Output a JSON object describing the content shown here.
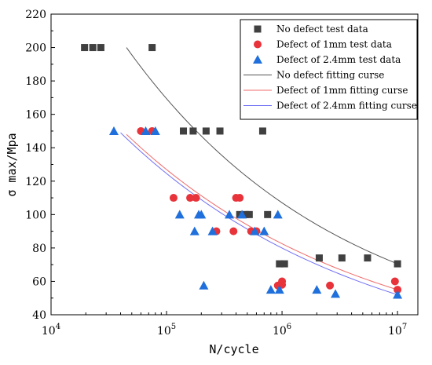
{
  "chart_data": {
    "type": "scatter",
    "xlabel": "N/cycle",
    "ylabel": "σ max/Mpa",
    "x_scale": "log",
    "xlim": [
      10000,
      15000000
    ],
    "ylim": [
      40,
      220
    ],
    "x_ticks": [
      10000,
      100000,
      1000000,
      10000000
    ],
    "x_tick_labels": [
      {
        "base": "10",
        "exp": "4"
      },
      {
        "base": "10",
        "exp": "5"
      },
      {
        "base": "10",
        "exp": "6"
      },
      {
        "base": "10",
        "exp": "7"
      }
    ],
    "y_ticks": [
      40,
      60,
      80,
      100,
      120,
      140,
      160,
      180,
      200,
      220
    ],
    "grid": false,
    "legend_position": "top-right",
    "series": [
      {
        "name": "No defect test data",
        "marker": "square",
        "color": "#404040",
        "points": [
          [
            19500,
            200
          ],
          [
            23000,
            200
          ],
          [
            27000,
            200
          ],
          [
            75000,
            200
          ],
          [
            140000,
            150
          ],
          [
            170000,
            150
          ],
          [
            220000,
            150
          ],
          [
            290000,
            150
          ],
          [
            680000,
            150
          ],
          [
            430000,
            100
          ],
          [
            480000,
            100
          ],
          [
            520000,
            100
          ],
          [
            750000,
            100
          ],
          [
            950000,
            70.5
          ],
          [
            1050000,
            70.5
          ],
          [
            2100000,
            74
          ],
          [
            3300000,
            74
          ],
          [
            5500000,
            74
          ],
          [
            10000000,
            70.5
          ]
        ]
      },
      {
        "name": "Defect of 1mm  test data",
        "marker": "circle",
        "color": "#e8333a",
        "points": [
          [
            60000,
            150
          ],
          [
            75000,
            150
          ],
          [
            115000,
            110
          ],
          [
            160000,
            110
          ],
          [
            180000,
            110
          ],
          [
            400000,
            110
          ],
          [
            430000,
            110
          ],
          [
            270000,
            90
          ],
          [
            380000,
            90
          ],
          [
            540000,
            90
          ],
          [
            600000,
            90
          ],
          [
            920000,
            57.5
          ],
          [
            1000000,
            58
          ],
          [
            1000000,
            60
          ],
          [
            2600000,
            57.5
          ],
          [
            9500000,
            60
          ],
          [
            10000000,
            55
          ]
        ]
      },
      {
        "name": "Defect of 2.4mm  test data",
        "marker": "triangle",
        "color": "#1f6fdc",
        "points": [
          [
            35000,
            150
          ],
          [
            66000,
            150
          ],
          [
            80000,
            150
          ],
          [
            130000,
            100
          ],
          [
            190000,
            100
          ],
          [
            200000,
            100
          ],
          [
            350000,
            100
          ],
          [
            450000,
            100
          ],
          [
            920000,
            100
          ],
          [
            175000,
            90
          ],
          [
            250000,
            90
          ],
          [
            580000,
            90
          ],
          [
            700000,
            90
          ],
          [
            210000,
            57.5
          ],
          [
            800000,
            55
          ],
          [
            950000,
            55
          ],
          [
            2000000,
            55
          ],
          [
            2900000,
            52.5
          ],
          [
            10000000,
            52
          ]
        ]
      }
    ],
    "fit_lines": [
      {
        "name": "No defect fitting curse",
        "color": "#555555",
        "x_range": [
          45000,
          10000000
        ],
        "y_at_start": 200,
        "y_at_end": 70.5,
        "shape": 1.25
      },
      {
        "name": "Defect of 1mm  fitting curse",
        "color": "#f06a6a",
        "x_range": [
          45000,
          10000000
        ],
        "y_at_start": 148,
        "y_at_end": 55,
        "shape": 1.12
      },
      {
        "name": "Defect of 2.4mm  fitting curse",
        "color": "#6f6ff5",
        "x_range": [
          40000,
          10000000
        ],
        "y_at_start": 149,
        "y_at_end": 52,
        "shape": 1.12
      }
    ]
  }
}
